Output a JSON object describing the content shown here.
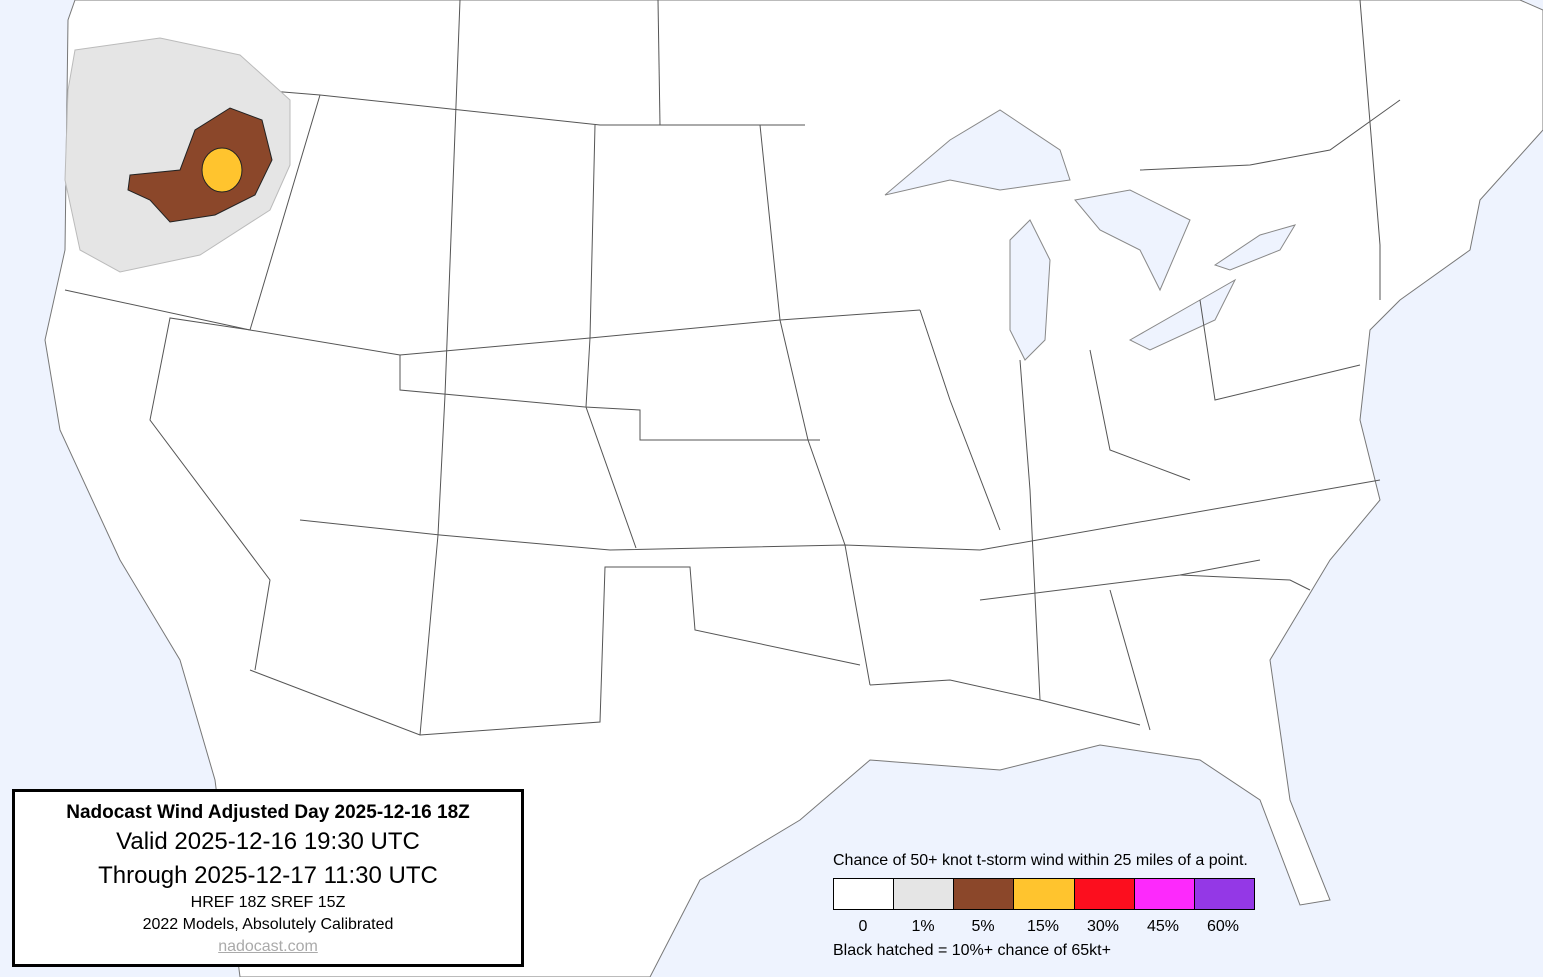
{
  "info": {
    "title": "Nadocast Wind Adjusted Day 2025-12-16 18Z",
    "valid": "Valid 2025-12-16 19:30 UTC",
    "through": "Through 2025-12-17 11:30 UTC",
    "models": "HREF 18Z SREF 15Z",
    "calibration": "2022 Models, Absolutely Calibrated",
    "link": "nadocast.com"
  },
  "legend": {
    "title": "Chance of 50+ knot t-storm wind within 25 miles of a point.",
    "levels": [
      {
        "label": "0",
        "color": "#ffffff"
      },
      {
        "label": "1%",
        "color": "#e5e5e5"
      },
      {
        "label": "5%",
        "color": "#8b472a"
      },
      {
        "label": "15%",
        "color": "#ffc42e"
      },
      {
        "label": "30%",
        "color": "#fc0e1e"
      },
      {
        "label": "45%",
        "color": "#fd29fc"
      },
      {
        "label": "60%",
        "color": "#9438e6"
      }
    ],
    "note": "Black hatched = 10%+ chance of 65kt+"
  },
  "colors": {
    "water": "#eef3fe",
    "land": "#ffffff",
    "border": "#555555"
  }
}
